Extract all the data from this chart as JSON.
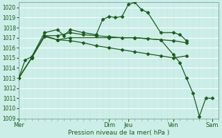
{
  "xlabel": "Pression niveau de la mer( hPa )",
  "ylim": [
    1009,
    1020.5
  ],
  "yticks": [
    1009,
    1010,
    1011,
    1012,
    1013,
    1014,
    1015,
    1016,
    1017,
    1018,
    1019,
    1020
  ],
  "bg_color": "#cceee8",
  "line_color": "#1a5c1a",
  "grid_color": "#b0ddd5",
  "vline_color": "#88aaa0",
  "day_labels": [
    "Mer",
    "Dim",
    "Jeu",
    "Ven",
    "Sam"
  ],
  "day_positions": [
    0,
    14,
    17,
    24,
    30
  ],
  "xlim": [
    0,
    31
  ],
  "series": [
    {
      "x": [
        0,
        1,
        2,
        4,
        6,
        7,
        8,
        10,
        12,
        13,
        14,
        15,
        16,
        17,
        18,
        19,
        20,
        22,
        24,
        25,
        26
      ],
      "y": [
        1013.0,
        1014.8,
        1015.1,
        1017.5,
        1017.8,
        1017.2,
        1017.8,
        1017.5,
        1017.3,
        1018.8,
        1019.1,
        1019.0,
        1019.1,
        1020.3,
        1020.5,
        1019.8,
        1019.5,
        1017.5,
        1017.5,
        1017.3,
        1016.7
      ]
    },
    {
      "x": [
        0,
        2,
        4,
        6,
        8,
        10,
        12,
        14,
        16,
        18,
        20,
        22,
        24,
        26
      ],
      "y": [
        1013.0,
        1015.0,
        1017.2,
        1017.2,
        1017.5,
        1017.3,
        1017.2,
        1017.1,
        1017.0,
        1017.0,
        1016.9,
        1016.8,
        1016.7,
        1016.5
      ]
    },
    {
      "x": [
        0,
        2,
        4,
        6,
        8,
        10,
        12,
        14,
        16,
        18,
        20,
        22,
        24,
        26
      ],
      "y": [
        1013.0,
        1015.0,
        1017.1,
        1016.8,
        1016.7,
        1016.5,
        1016.2,
        1016.0,
        1015.8,
        1015.6,
        1015.4,
        1015.2,
        1015.0,
        1015.2
      ]
    },
    {
      "x": [
        0,
        2,
        4,
        6,
        8,
        14,
        18,
        22,
        24,
        25,
        26,
        27,
        28,
        29,
        30
      ],
      "y": [
        1013.0,
        1015.0,
        1017.2,
        1016.8,
        1017.0,
        1017.0,
        1017.0,
        1016.8,
        1015.3,
        1014.5,
        1013.0,
        1011.5,
        1009.2,
        1011.0,
        1011.0
      ]
    }
  ],
  "vline_positions": [
    0,
    14,
    17,
    24,
    30
  ],
  "marker": "D",
  "markersize": 2.5,
  "linewidth": 0.9
}
